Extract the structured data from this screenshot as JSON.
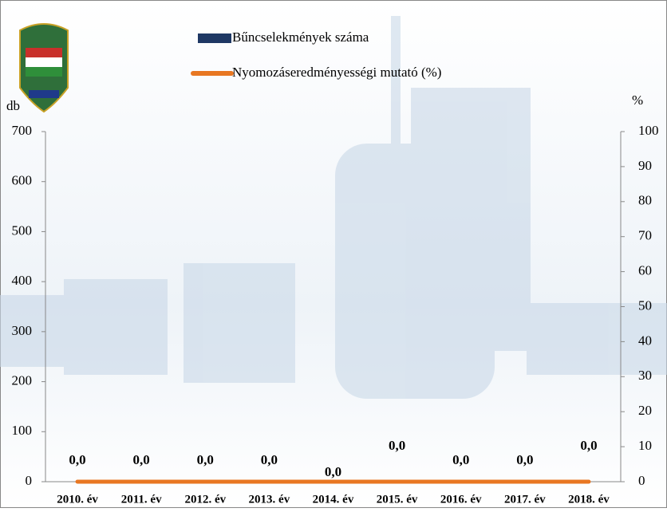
{
  "chart_data": {
    "type": "bar_line",
    "y_label": "db",
    "y2_label": "%",
    "categories": [
      "2010. év",
      "2011. év",
      "2012. év",
      "2013. év",
      "2014. év",
      "2015. év",
      "2016. év",
      "2017. év",
      "2018. év"
    ],
    "series": [
      {
        "name": "Bűncselekmények száma",
        "type": "bar",
        "color": "#1f3864",
        "values": [
          0,
          0,
          0,
          0,
          0,
          0,
          0,
          0,
          0
        ]
      },
      {
        "name": "Nyomozáseredményességi mutató (%)",
        "type": "line",
        "axis": "y2",
        "color": "#e87722",
        "values": [
          0,
          0,
          0,
          0,
          0,
          0,
          0,
          0,
          0
        ],
        "value_labels": [
          "0,0",
          "0,0",
          "0,0",
          "0,0",
          "0,0",
          "0,0",
          "0,0",
          "0,0",
          "0,0"
        ]
      }
    ],
    "ylim": [
      0,
      700
    ],
    "yticks": [
      0,
      100,
      200,
      300,
      400,
      500,
      600,
      700
    ],
    "y2lim": [
      0,
      100
    ],
    "y2ticks": [
      0,
      10,
      20,
      30,
      40,
      50,
      60,
      70,
      80,
      90,
      100
    ]
  }
}
